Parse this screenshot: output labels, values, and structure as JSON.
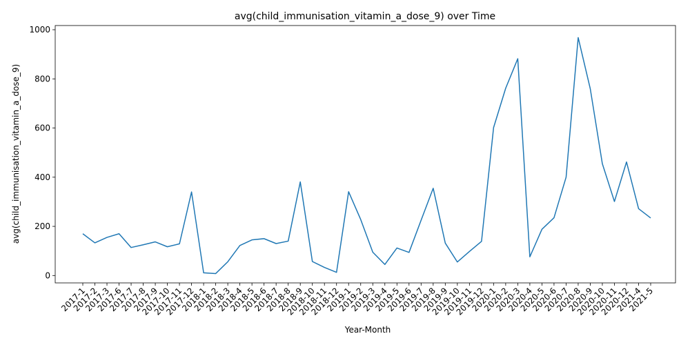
{
  "chart_data": {
    "type": "line",
    "title": "avg(child_immunisation_vitamin_a_dose_9) over Time",
    "xlabel": "Year-Month",
    "ylabel": "avg(child_immunisation_vitamin_a_dose_9)",
    "ylim": [
      -30,
      1017
    ],
    "yticks": [
      0,
      200,
      400,
      600,
      800,
      1000
    ],
    "grid": false,
    "legend": "none",
    "color": "#1f77b4",
    "categories": [
      "2017-1",
      "2017-2",
      "2017-3",
      "2017-6",
      "2017-7",
      "2017-8",
      "2017-9",
      "2017-10",
      "2017-11",
      "2017-12",
      "2018-1",
      "2018-2",
      "2018-3",
      "2018-4",
      "2018-5",
      "2018-6",
      "2018-7",
      "2018-8",
      "2018-9",
      "2018-10",
      "2018-11",
      "2018-12",
      "2019-1",
      "2019-2",
      "2019-3",
      "2019-4",
      "2019-5",
      "2019-6",
      "2019-7",
      "2019-8",
      "2019-9",
      "2019-10",
      "2019-11",
      "2019-12",
      "2020-1",
      "2020-2",
      "2020-3",
      "2020-4",
      "2020-5",
      "2020-6",
      "2020-7",
      "2020-8",
      "2020-9",
      "2020-10",
      "2020-11",
      "2020-12",
      "2021-4",
      "2021-5"
    ],
    "values": [
      170,
      133,
      155,
      170,
      114,
      125,
      137,
      117,
      129,
      340,
      11,
      8,
      56,
      122,
      145,
      150,
      130,
      140,
      381,
      57,
      33,
      13,
      341,
      228,
      95,
      45,
      112,
      94,
      225,
      355,
      132,
      55,
      98,
      139,
      602,
      762,
      882,
      76,
      188,
      235,
      400,
      968,
      760,
      455,
      301,
      462,
      272,
      234
    ]
  }
}
